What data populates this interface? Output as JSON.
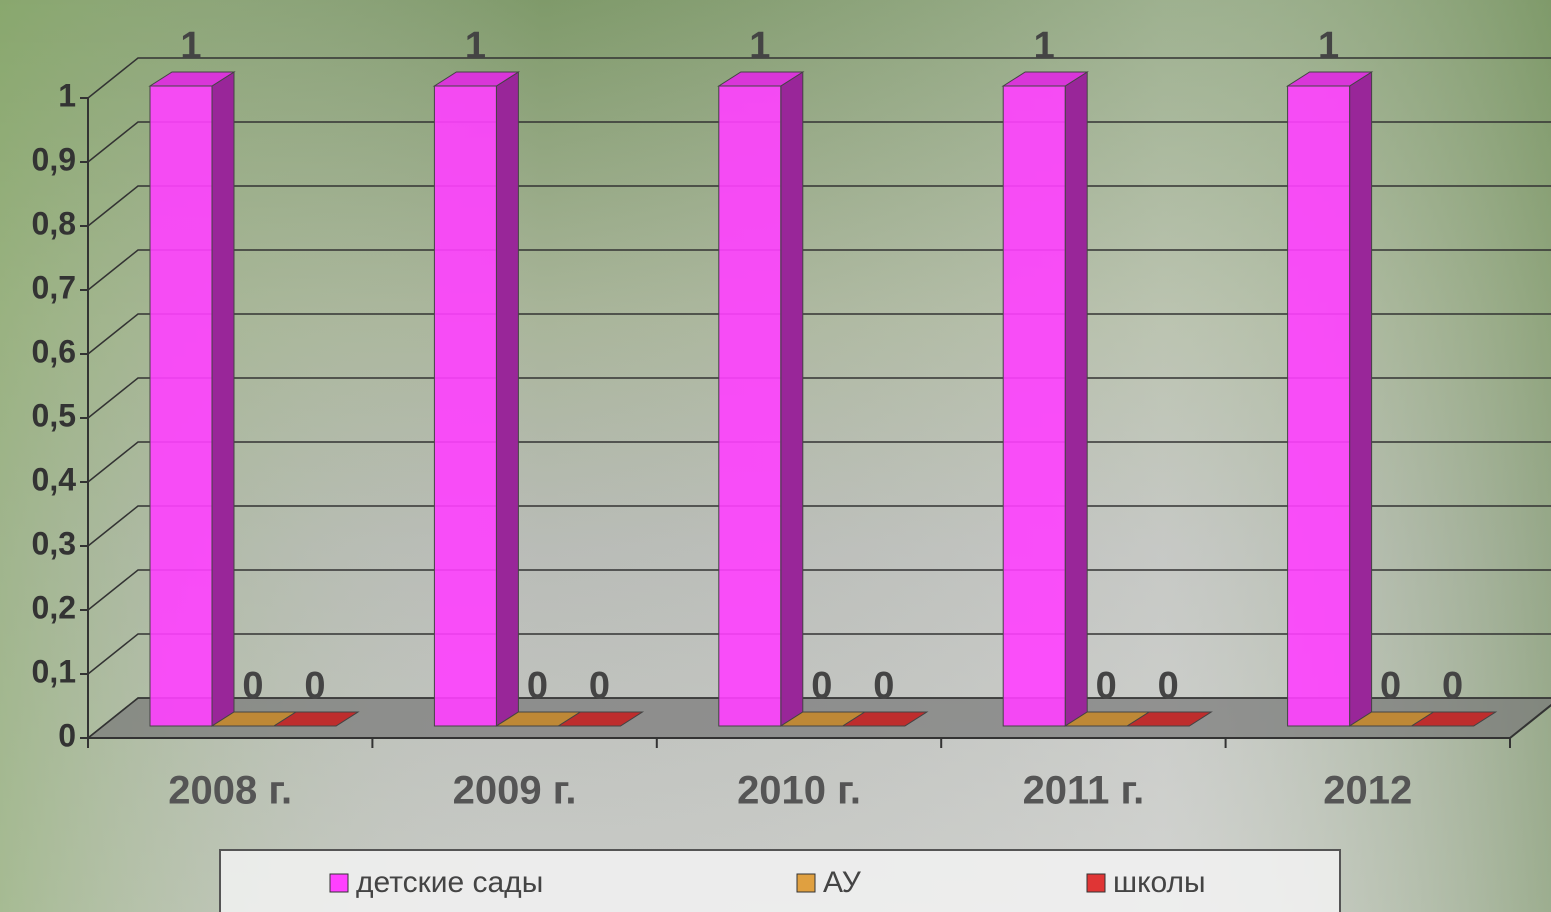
{
  "chart_data": {
    "type": "bar3d",
    "categories": [
      "2008 г.",
      "2009 г.",
      "2010 г.",
      "2011 г.",
      "2012"
    ],
    "series": [
      {
        "name": "детские сады",
        "color": "#ff40ff",
        "values": [
          1,
          1,
          1,
          1,
          1
        ]
      },
      {
        "name": "АУ",
        "color": "#e0a040",
        "values": [
          0,
          0,
          0,
          0,
          0
        ]
      },
      {
        "name": "школы",
        "color": "#e03535",
        "values": [
          0,
          0,
          0,
          0,
          0
        ]
      }
    ],
    "ylim": [
      0,
      1
    ],
    "yticks": [
      0,
      {
        "value": 0.1,
        "label": "0,1"
      },
      {
        "value": 0.2,
        "label": "0,2"
      },
      {
        "value": 0.3,
        "label": "0,3"
      },
      {
        "value": 0.4,
        "label": "0,4"
      },
      {
        "value": 0.5,
        "label": "0,5"
      },
      {
        "value": 0.6,
        "label": "0,6"
      },
      {
        "value": 0.7,
        "label": "0,7"
      },
      {
        "value": 0.8,
        "label": "0,8"
      },
      {
        "value": 0.9,
        "label": "0,9"
      },
      1
    ],
    "grid": true
  }
}
